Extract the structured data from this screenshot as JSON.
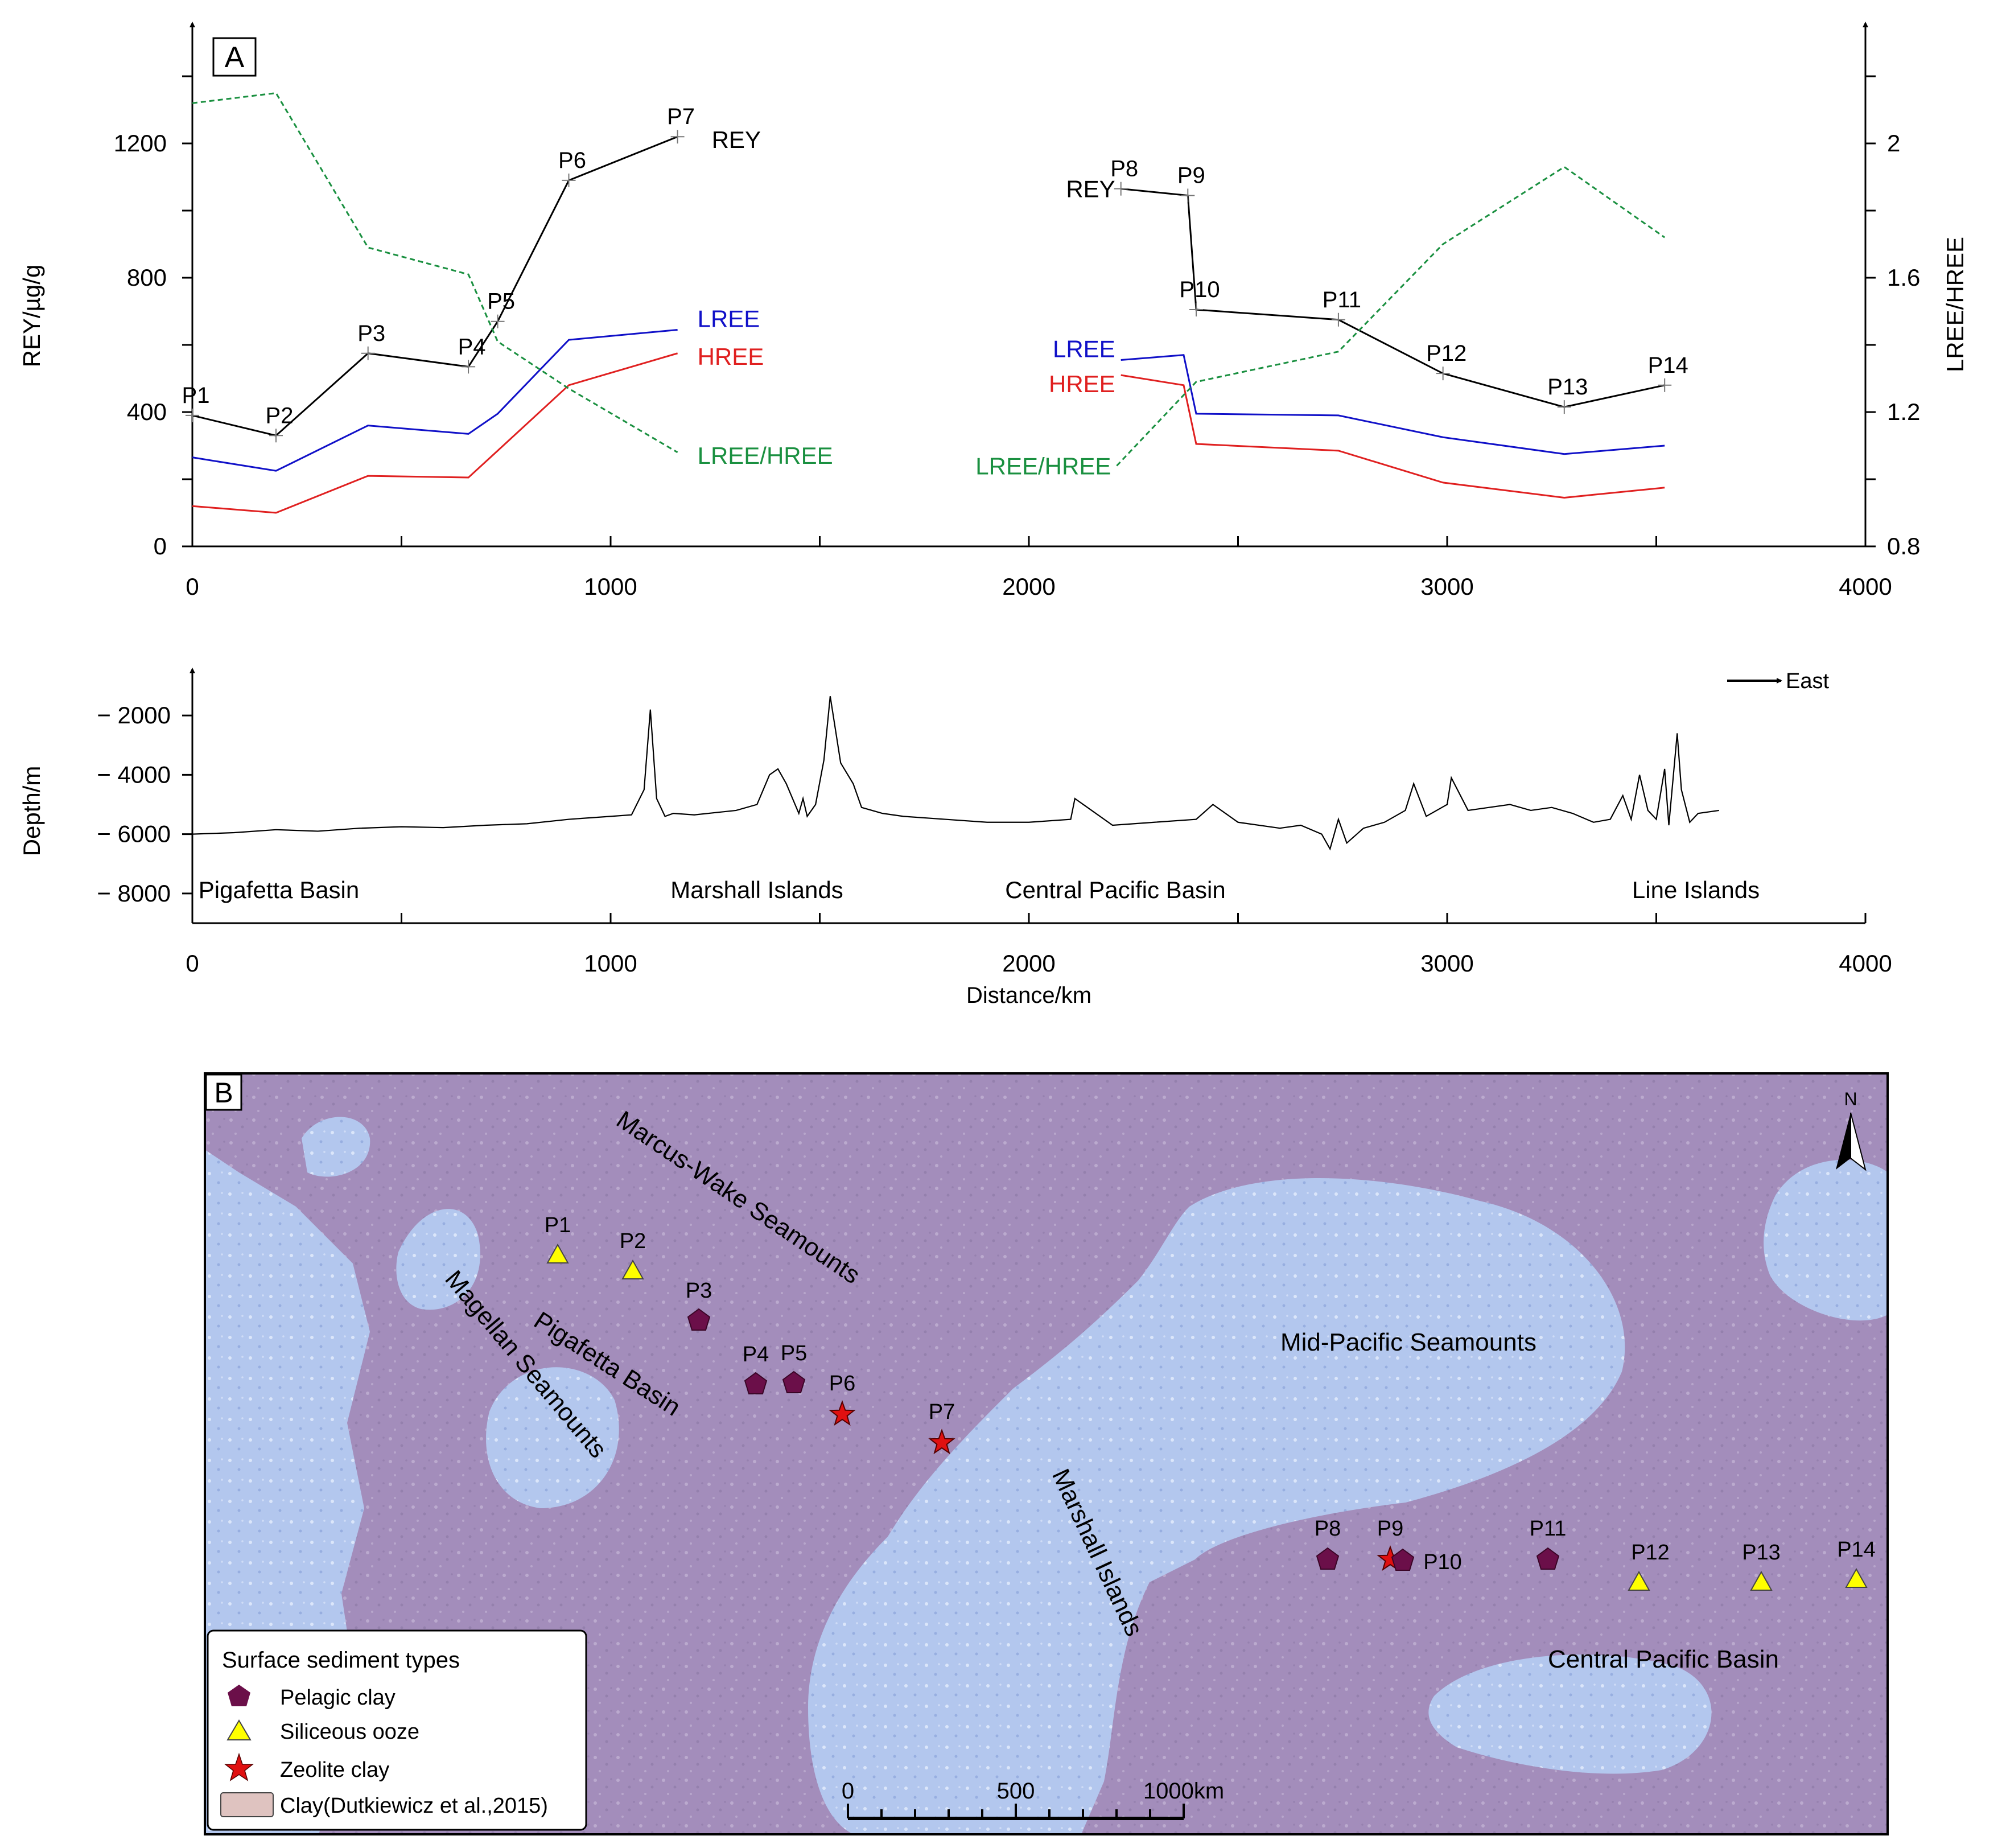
{
  "panel_a": {
    "label": "A",
    "y_left_label": "REY/µg/g",
    "y_right_label": "LREE/HREE",
    "east_label": "East"
  },
  "panel_b": {
    "label": "B",
    "regions": {
      "marcus_wake": "Marcus-Wake Seamounts",
      "magellan": "Magellan Seamounts",
      "pigafetta": "Pigafetta Basin",
      "mid_pacific": "Mid-Pacific Seamounts",
      "marshall": "Marshall Islands",
      "central_pacific": "Central Pacific Basin"
    },
    "north": "N",
    "legend": {
      "title": "Surface sediment types",
      "pelagic": "Pelagic  clay",
      "siliceous": "Siliceous ooze",
      "zeolite": "Zeolite clay",
      "clay": "Clay(Dutkiewicz et al.,2015)"
    },
    "scale_ticks": [
      "0",
      "500",
      "1000km"
    ],
    "colors": {
      "pelagic": "#6b0f49",
      "siliceous": "#ffff00",
      "zeolite": "#e01010",
      "water": "#b4c8f0",
      "clay": "#a38cb8"
    },
    "stations": [
      {
        "id": "P1",
        "type": "siliceous"
      },
      {
        "id": "P2",
        "type": "siliceous"
      },
      {
        "id": "P3",
        "type": "pelagic"
      },
      {
        "id": "P4",
        "type": "pelagic"
      },
      {
        "id": "P5",
        "type": "pelagic"
      },
      {
        "id": "P6",
        "type": "zeolite"
      },
      {
        "id": "P7",
        "type": "zeolite"
      },
      {
        "id": "P8",
        "type": "pelagic"
      },
      {
        "id": "P9",
        "type": "zeolite"
      },
      {
        "id": "P10",
        "type": "pelagic"
      },
      {
        "id": "P11",
        "type": "pelagic"
      },
      {
        "id": "P12",
        "type": "siliceous"
      },
      {
        "id": "P13",
        "type": "siliceous"
      },
      {
        "id": "P14",
        "type": "siliceous"
      }
    ]
  },
  "chart_data": [
    {
      "type": "line",
      "xlim": [
        0,
        4000
      ],
      "x_ticks": [
        0,
        1000,
        2000,
        3000,
        4000
      ],
      "ylim": [
        0,
        1500
      ],
      "y_ticks": [
        0,
        400,
        800,
        1200
      ],
      "y2lim": [
        0.8,
        2.3
      ],
      "y2_ticks": [
        0.8,
        1.2,
        1.6,
        2.0
      ],
      "y2_tick_labels": [
        "0.8",
        "1.2",
        "1.6",
        "2"
      ],
      "ylabel": "REY/µg/g",
      "y2label": "LREE/HREE",
      "colors": {
        "REY": "#000000",
        "LREE": "#1010c8",
        "HREE": "#e02020",
        "LREE/HREE": "#1a9040"
      },
      "series": [
        {
          "name": "REY",
          "axis": "left",
          "segments": [
            {
              "x": [
                0,
                200,
                420,
                660,
                730,
                900,
                1160
              ],
              "y": [
                390,
                330,
                575,
                535,
                670,
                1090,
                1220
              ],
              "labels": [
                "P1",
                "P2",
                "P3",
                "P4",
                "P5",
                "P6",
                "P7"
              ]
            },
            {
              "x": [
                2220,
                2380,
                2400,
                2740,
                2990,
                3280,
                3520
              ],
              "y": [
                1065,
                1045,
                705,
                675,
                515,
                415,
                480
              ],
              "labels": [
                "P8",
                "P9",
                "P10",
                "P11",
                "P12",
                "P13",
                "P14"
              ]
            }
          ]
        },
        {
          "name": "LREE",
          "axis": "left",
          "segments": [
            {
              "x": [
                0,
                200,
                420,
                660,
                730,
                900,
                1160
              ],
              "y": [
                265,
                225,
                360,
                335,
                395,
                615,
                645
              ]
            },
            {
              "x": [
                2220,
                2370,
                2400,
                2740,
                2990,
                3280,
                3520
              ],
              "y": [
                555,
                570,
                395,
                390,
                325,
                275,
                300
              ]
            }
          ]
        },
        {
          "name": "HREE",
          "axis": "left",
          "segments": [
            {
              "x": [
                0,
                200,
                420,
                660,
                730,
                900,
                1160
              ],
              "y": [
                120,
                100,
                210,
                205,
                285,
                480,
                575
              ]
            },
            {
              "x": [
                2220,
                2370,
                2400,
                2740,
                2990,
                3280,
                3520
              ],
              "y": [
                510,
                480,
                305,
                285,
                190,
                145,
                175
              ]
            }
          ]
        },
        {
          "name": "LREE/HREE",
          "axis": "right",
          "dashed": true,
          "segments": [
            {
              "x": [
                0,
                200,
                420,
                660,
                730,
                900,
                1160
              ],
              "y": [
                2.12,
                2.15,
                1.69,
                1.61,
                1.41,
                1.27,
                1.08
              ]
            },
            {
              "x": [
                2210,
                2400,
                2740,
                2990,
                3280,
                3520
              ],
              "y": [
                1.04,
                1.29,
                1.38,
                1.7,
                1.93,
                1.72
              ]
            }
          ]
        }
      ]
    },
    {
      "type": "line",
      "xlim": [
        0,
        4000
      ],
      "x_ticks": [
        0,
        1000,
        2000,
        3000,
        4000
      ],
      "ylim": [
        -9000,
        -1000
      ],
      "y_ticks": [
        -2000,
        -4000,
        -6000,
        -8000
      ],
      "y_tick_labels": [
        "− 2000",
        "− 4000",
        "− 6000",
        "− 8000"
      ],
      "xlabel": "Distance/km",
      "ylabel": "Depth/m",
      "annotations": [
        "Pigafetta Basin",
        "Marshall Islands",
        "Central Pacific Basin",
        "Line Islands"
      ],
      "series": [
        {
          "name": "Depth",
          "x": [
            0,
            100,
            200,
            300,
            400,
            500,
            600,
            700,
            800,
            900,
            1000,
            1050,
            1080,
            1095,
            1110,
            1130,
            1150,
            1200,
            1300,
            1350,
            1380,
            1400,
            1420,
            1450,
            1460,
            1470,
            1490,
            1510,
            1525,
            1550,
            1580,
            1600,
            1650,
            1700,
            1800,
            1900,
            2000,
            2100,
            2110,
            2200,
            2300,
            2400,
            2440,
            2500,
            2600,
            2650,
            2700,
            2720,
            2740,
            2760,
            2800,
            2850,
            2900,
            2920,
            2950,
            3000,
            3010,
            3050,
            3100,
            3150,
            3200,
            3250,
            3300,
            3350,
            3390,
            3420,
            3440,
            3460,
            3480,
            3500,
            3520,
            3530,
            3550,
            3560,
            3580,
            3600,
            3650
          ],
          "y": [
            -6000,
            -5950,
            -5850,
            -5900,
            -5800,
            -5750,
            -5780,
            -5700,
            -5650,
            -5500,
            -5400,
            -5350,
            -4500,
            -1800,
            -4800,
            -5400,
            -5300,
            -5350,
            -5200,
            -5000,
            -4000,
            -3800,
            -4300,
            -5300,
            -4800,
            -5400,
            -5000,
            -3500,
            -1350,
            -3600,
            -4300,
            -5100,
            -5300,
            -5400,
            -5500,
            -5600,
            -5600,
            -5500,
            -4800,
            -5700,
            -5600,
            -5500,
            -5000,
            -5600,
            -5800,
            -5700,
            -6000,
            -6500,
            -5500,
            -6300,
            -5800,
            -5600,
            -5200,
            -4300,
            -5400,
            -5000,
            -4100,
            -5200,
            -5100,
            -5000,
            -5200,
            -5100,
            -5300,
            -5600,
            -5500,
            -4700,
            -5500,
            -4000,
            -5200,
            -5500,
            -3800,
            -5700,
            -2600,
            -4500,
            -5600,
            -5300,
            -5200
          ]
        }
      ]
    }
  ]
}
